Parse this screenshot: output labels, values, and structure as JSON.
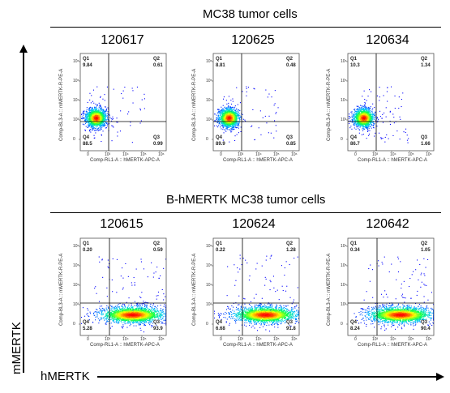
{
  "axes": {
    "y_label": "mMERTK",
    "x_label": "hMERTK"
  },
  "groups": [
    {
      "title": "MC38 tumor cells",
      "plots": [
        {
          "sample": "120617",
          "q1": "9.84",
          "q2": "0.61",
          "q3": "0.99",
          "q4": "88.5",
          "type": "neg"
        },
        {
          "sample": "120625",
          "q1": "8.81",
          "q2": "0.48",
          "q3": "0.85",
          "q4": "89.9",
          "type": "neg"
        },
        {
          "sample": "120634",
          "q1": "10.3",
          "q2": "1.34",
          "q3": "1.66",
          "q4": "86.7",
          "type": "neg"
        }
      ]
    },
    {
      "title": "B-hMERTK MC38 tumor cells",
      "plots": [
        {
          "sample": "120615",
          "q1": "0.20",
          "q2": "0.59",
          "q3": "93.9",
          "q4": "5.28",
          "type": "pos"
        },
        {
          "sample": "120624",
          "q1": "0.22",
          "q2": "1.28",
          "q3": "91.8",
          "q4": "6.68",
          "type": "pos"
        },
        {
          "sample": "120642",
          "q1": "0.34",
          "q2": "1.05",
          "q3": "90.4",
          "q4": "8.24",
          "type": "pos"
        }
      ]
    }
  ],
  "plot_axis_labels": {
    "y": "Comp-BL3-A :: mMERTK-R-PE-A",
    "x": "Comp-RL1-A :: hMERTK-APC-A"
  },
  "quadrant_names": {
    "q1": "Q1",
    "q2": "Q2",
    "q3": "Q3",
    "q4": "Q4"
  },
  "ticks": {
    "x": [
      "0",
      "10³",
      "10⁴",
      "10⁵",
      "10⁶"
    ],
    "y": [
      "10⁶",
      "10⁵",
      "10⁴",
      "10³",
      "0"
    ]
  },
  "colors": {
    "density_low": "#0000ff",
    "density_mid": "#00ff00",
    "density_high": "#ff0000"
  }
}
